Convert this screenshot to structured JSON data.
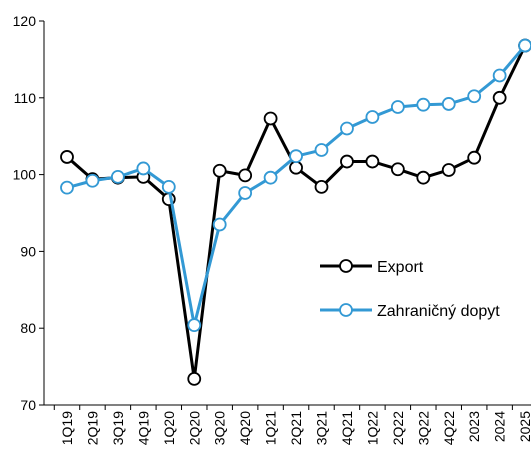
{
  "chart_data": {
    "type": "line",
    "categories": [
      "1Q19",
      "2Q19",
      "3Q19",
      "4Q19",
      "1Q20",
      "2Q20",
      "3Q20",
      "4Q20",
      "1Q21",
      "2Q21",
      "3Q21",
      "4Q21",
      "1Q22",
      "2Q22",
      "3Q22",
      "4Q22",
      "2023",
      "2024",
      "2025"
    ],
    "series": [
      {
        "name": "Export",
        "color": "#000000",
        "values": [
          102.3,
          99.4,
          99.6,
          99.7,
          96.8,
          73.4,
          100.5,
          99.9,
          107.3,
          100.9,
          98.4,
          101.7,
          101.7,
          100.7,
          99.6,
          100.6,
          102.2,
          110.0,
          116.8
        ]
      },
      {
        "name": "Zahraničný dopyt",
        "color": "#3399d4",
        "values": [
          98.3,
          99.2,
          99.7,
          100.8,
          98.4,
          80.4,
          93.5,
          97.6,
          99.6,
          102.4,
          103.2,
          106.0,
          107.5,
          108.8,
          109.1,
          109.2,
          110.2,
          112.9,
          116.8
        ]
      }
    ],
    "ylim": [
      70,
      120
    ],
    "yticks": [
      70,
      80,
      90,
      100,
      110,
      120
    ]
  }
}
